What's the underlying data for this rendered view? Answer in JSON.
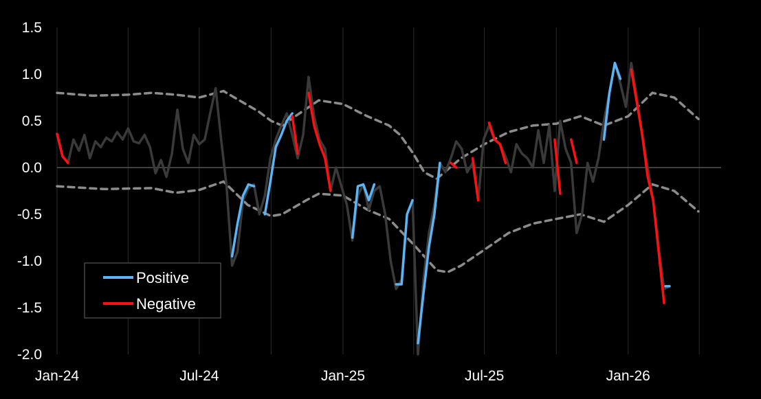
{
  "chart_data": {
    "type": "line",
    "title": "",
    "xlabel": "",
    "ylabel": "",
    "ylim": [
      -2.0,
      1.5
    ],
    "xlim": [
      "2024-01-01",
      "2026-04-30"
    ],
    "y_ticks": [
      "1.5",
      "1.0",
      "0.5",
      "0.0",
      "-0.5",
      "-1.0",
      "-1.5",
      "-2.0"
    ],
    "x_ticks": [
      {
        "label": "Jan-24",
        "date": "2024-01-01"
      },
      {
        "label": "Jul-24",
        "date": "2024-07-01"
      },
      {
        "label": "Jan-25",
        "date": "2025-01-01"
      },
      {
        "label": "Jul-25",
        "date": "2025-07-01"
      },
      {
        "label": "Jan-26",
        "date": "2026-01-01"
      }
    ],
    "grid": "vertical",
    "zero_line": true,
    "legend": {
      "placement": "bottom-left",
      "entries": [
        {
          "label": "Positive",
          "color": "#5BB4F5"
        },
        {
          "label": "Negative",
          "color": "#FF1010"
        }
      ]
    },
    "colors": {
      "base": "#3A3A3A",
      "positive": "#5BB4F5",
      "negative": "#FF1010",
      "band": "#8C8C8C",
      "grid": "#2A2A2A",
      "zero_line": "#555555"
    },
    "series": [
      {
        "role": "base",
        "points": [
          [
            "2024-01-01",
            0.36
          ],
          [
            "2024-01-08",
            0.12
          ],
          [
            "2024-01-15",
            0.05
          ],
          [
            "2024-01-22",
            0.3
          ],
          [
            "2024-01-29",
            0.18
          ],
          [
            "2024-02-05",
            0.35
          ],
          [
            "2024-02-12",
            0.1
          ],
          [
            "2024-02-19",
            0.28
          ],
          [
            "2024-02-26",
            0.22
          ],
          [
            "2024-03-04",
            0.32
          ],
          [
            "2024-03-11",
            0.28
          ],
          [
            "2024-03-18",
            0.38
          ],
          [
            "2024-03-25",
            0.3
          ],
          [
            "2024-04-01",
            0.42
          ],
          [
            "2024-04-08",
            0.28
          ],
          [
            "2024-04-15",
            0.26
          ],
          [
            "2024-04-22",
            0.35
          ],
          [
            "2024-04-29",
            0.22
          ],
          [
            "2024-05-06",
            -0.06
          ],
          [
            "2024-05-13",
            0.08
          ],
          [
            "2024-05-20",
            -0.1
          ],
          [
            "2024-05-27",
            0.15
          ],
          [
            "2024-06-03",
            0.62
          ],
          [
            "2024-06-10",
            0.2
          ],
          [
            "2024-06-17",
            0.05
          ],
          [
            "2024-06-24",
            0.35
          ],
          [
            "2024-07-01",
            0.25
          ],
          [
            "2024-07-08",
            0.3
          ],
          [
            "2024-07-15",
            0.58
          ],
          [
            "2024-07-22",
            0.85
          ],
          [
            "2024-07-29",
            0.3
          ],
          [
            "2024-08-05",
            -0.2
          ],
          [
            "2024-08-12",
            -1.05
          ],
          [
            "2024-08-19",
            -0.9
          ],
          [
            "2024-08-26",
            -0.35
          ],
          [
            "2024-09-02",
            -0.22
          ],
          [
            "2024-09-09",
            -0.18
          ],
          [
            "2024-09-16",
            -0.5
          ],
          [
            "2024-09-23",
            -0.3
          ],
          [
            "2024-09-30",
            0.1
          ],
          [
            "2024-10-07",
            0.3
          ],
          [
            "2024-10-14",
            0.45
          ],
          [
            "2024-10-21",
            0.58
          ],
          [
            "2024-10-28",
            0.35
          ],
          [
            "2024-11-04",
            0.1
          ],
          [
            "2024-11-11",
            0.35
          ],
          [
            "2024-11-18",
            0.97
          ],
          [
            "2024-11-25",
            0.55
          ],
          [
            "2024-12-02",
            0.3
          ],
          [
            "2024-12-09",
            0.2
          ],
          [
            "2024-12-16",
            -0.25
          ],
          [
            "2024-12-23",
            0.0
          ],
          [
            "2024-12-30",
            -0.2
          ],
          [
            "2025-01-06",
            -0.4
          ],
          [
            "2025-01-13",
            -0.78
          ],
          [
            "2025-01-20",
            -0.3
          ],
          [
            "2025-01-27",
            -0.18
          ],
          [
            "2025-02-03",
            -0.45
          ],
          [
            "2025-02-10",
            -0.25
          ],
          [
            "2025-02-17",
            -0.2
          ],
          [
            "2025-02-24",
            -0.5
          ],
          [
            "2025-03-03",
            -1.0
          ],
          [
            "2025-03-10",
            -1.3
          ],
          [
            "2025-03-17",
            -1.2
          ],
          [
            "2025-03-24",
            -0.5
          ],
          [
            "2025-03-31",
            -0.35
          ],
          [
            "2025-04-07",
            -2.0
          ],
          [
            "2025-04-14",
            -1.2
          ],
          [
            "2025-04-21",
            -0.7
          ],
          [
            "2025-04-28",
            -0.4
          ],
          [
            "2025-05-05",
            0.05
          ],
          [
            "2025-05-12",
            -0.05
          ],
          [
            "2025-05-19",
            0.1
          ],
          [
            "2025-05-26",
            0.28
          ],
          [
            "2025-06-02",
            0.2
          ],
          [
            "2025-06-09",
            -0.05
          ],
          [
            "2025-06-16",
            0.05
          ],
          [
            "2025-06-23",
            -0.35
          ],
          [
            "2025-06-30",
            0.3
          ],
          [
            "2025-07-07",
            0.45
          ],
          [
            "2025-07-14",
            0.3
          ],
          [
            "2025-07-21",
            0.25
          ],
          [
            "2025-07-28",
            0.12
          ],
          [
            "2025-08-04",
            -0.05
          ],
          [
            "2025-08-11",
            0.25
          ],
          [
            "2025-08-18",
            0.15
          ],
          [
            "2025-08-25",
            0.1
          ],
          [
            "2025-09-01",
            0.0
          ],
          [
            "2025-09-08",
            0.4
          ],
          [
            "2025-09-15",
            0.05
          ],
          [
            "2025-09-22",
            0.45
          ],
          [
            "2025-09-29",
            -0.25
          ],
          [
            "2025-10-06",
            0.5
          ],
          [
            "2025-10-13",
            0.2
          ],
          [
            "2025-10-20",
            0.05
          ],
          [
            "2025-10-27",
            -0.7
          ],
          [
            "2025-11-03",
            -0.5
          ],
          [
            "2025-11-10",
            0.05
          ],
          [
            "2025-11-17",
            -0.15
          ],
          [
            "2025-11-24",
            0.1
          ],
          [
            "2025-12-01",
            0.5
          ],
          [
            "2025-12-08",
            0.8
          ],
          [
            "2025-12-15",
            1.12
          ],
          [
            "2025-12-22",
            0.9
          ],
          [
            "2025-12-29",
            0.65
          ],
          [
            "2026-01-05",
            1.12
          ],
          [
            "2026-01-12",
            0.75
          ],
          [
            "2026-01-19",
            0.35
          ],
          [
            "2026-01-26",
            0.0
          ],
          [
            "2026-02-02",
            -0.35
          ],
          [
            "2026-02-09",
            -0.85
          ],
          [
            "2026-02-16",
            -1.3
          ],
          [
            "2026-02-23",
            -1.27
          ]
        ]
      },
      {
        "role": "positive",
        "segments": [
          [
            [
              "2024-08-12",
              -0.95
            ],
            [
              "2024-08-19",
              -0.6
            ],
            [
              "2024-08-26",
              -0.3
            ],
            [
              "2024-09-02",
              -0.18
            ],
            [
              "2024-09-09",
              -0.2
            ]
          ],
          [
            [
              "2024-09-23",
              -0.5
            ],
            [
              "2024-09-30",
              -0.15
            ],
            [
              "2024-10-07",
              0.22
            ],
            [
              "2024-10-14",
              0.35
            ],
            [
              "2024-10-21",
              0.5
            ],
            [
              "2024-10-28",
              0.58
            ]
          ],
          [
            [
              "2025-01-13",
              -0.75
            ],
            [
              "2025-01-20",
              -0.2
            ],
            [
              "2025-01-27",
              -0.18
            ],
            [
              "2025-02-03",
              -0.35
            ],
            [
              "2025-02-10",
              -0.18
            ]
          ],
          [
            [
              "2025-03-10",
              -1.25
            ],
            [
              "2025-03-17",
              -1.25
            ],
            [
              "2025-03-24",
              -0.5
            ],
            [
              "2025-03-31",
              -0.35
            ]
          ],
          [
            [
              "2025-04-07",
              -1.88
            ],
            [
              "2025-04-14",
              -1.35
            ],
            [
              "2025-04-21",
              -0.85
            ],
            [
              "2025-04-28",
              -0.5
            ],
            [
              "2025-05-05",
              0.05
            ]
          ],
          [
            [
              "2025-12-01",
              0.3
            ],
            [
              "2025-12-08",
              0.8
            ],
            [
              "2025-12-15",
              1.12
            ],
            [
              "2025-12-22",
              0.95
            ]
          ],
          [
            [
              "2026-02-23",
              -1.27
            ]
          ]
        ]
      },
      {
        "role": "negative",
        "segments": [
          [
            [
              "2024-01-01",
              0.36
            ],
            [
              "2024-01-08",
              0.12
            ],
            [
              "2024-01-15",
              0.05
            ]
          ],
          [
            [
              "2024-10-28",
              0.55
            ],
            [
              "2024-11-04",
              0.15
            ]
          ],
          [
            [
              "2024-11-18",
              0.8
            ],
            [
              "2024-11-25",
              0.45
            ],
            [
              "2024-12-02",
              0.25
            ],
            [
              "2024-12-09",
              0.1
            ],
            [
              "2024-12-16",
              -0.25
            ]
          ],
          [
            [
              "2025-05-19",
              0.05
            ],
            [
              "2025-05-26",
              0.0
            ]
          ],
          [
            [
              "2025-06-16",
              0.1
            ],
            [
              "2025-06-23",
              -0.35
            ]
          ],
          [
            [
              "2025-07-07",
              0.48
            ],
            [
              "2025-07-14",
              0.3
            ],
            [
              "2025-07-21",
              0.25
            ],
            [
              "2025-07-28",
              0.05
            ]
          ],
          [
            [
              "2025-09-29",
              0.3
            ],
            [
              "2025-10-06",
              -0.28
            ]
          ],
          [
            [
              "2025-10-20",
              0.3
            ],
            [
              "2025-10-27",
              0.05
            ]
          ],
          [
            [
              "2026-01-05",
              1.05
            ],
            [
              "2026-01-12",
              0.7
            ],
            [
              "2026-01-19",
              0.35
            ],
            [
              "2026-01-26",
              -0.1
            ],
            [
              "2026-02-02",
              -0.35
            ],
            [
              "2026-02-09",
              -0.9
            ],
            [
              "2026-02-16",
              -1.45
            ]
          ]
        ]
      },
      {
        "role": "band",
        "name": "upper",
        "points": [
          [
            "2024-01-01",
            0.8
          ],
          [
            "2024-02-15",
            0.77
          ],
          [
            "2024-04-01",
            0.78
          ],
          [
            "2024-05-01",
            0.8
          ],
          [
            "2024-06-01",
            0.78
          ],
          [
            "2024-07-01",
            0.75
          ],
          [
            "2024-08-01",
            0.82
          ],
          [
            "2024-08-15",
            0.75
          ],
          [
            "2024-09-15",
            0.6
          ],
          [
            "2024-10-01",
            0.5
          ],
          [
            "2024-10-15",
            0.45
          ],
          [
            "2024-11-01",
            0.55
          ],
          [
            "2024-12-01",
            0.72
          ],
          [
            "2025-01-01",
            0.68
          ],
          [
            "2025-02-01",
            0.55
          ],
          [
            "2025-03-01",
            0.45
          ],
          [
            "2025-03-15",
            0.35
          ],
          [
            "2025-04-01",
            0.15
          ],
          [
            "2025-04-15",
            -0.05
          ],
          [
            "2025-05-01",
            -0.12
          ],
          [
            "2025-06-01",
            0.1
          ],
          [
            "2025-07-01",
            0.25
          ],
          [
            "2025-08-01",
            0.38
          ],
          [
            "2025-09-01",
            0.45
          ],
          [
            "2025-10-01",
            0.47
          ],
          [
            "2025-11-01",
            0.55
          ],
          [
            "2025-12-01",
            0.45
          ],
          [
            "2026-01-01",
            0.55
          ],
          [
            "2026-02-01",
            0.8
          ],
          [
            "2026-03-01",
            0.75
          ],
          [
            "2026-04-01",
            0.52
          ]
        ]
      },
      {
        "role": "band",
        "name": "lower",
        "points": [
          [
            "2024-01-01",
            -0.2
          ],
          [
            "2024-03-01",
            -0.23
          ],
          [
            "2024-05-01",
            -0.22
          ],
          [
            "2024-06-01",
            -0.27
          ],
          [
            "2024-07-01",
            -0.24
          ],
          [
            "2024-08-01",
            -0.15
          ],
          [
            "2024-09-01",
            -0.4
          ],
          [
            "2024-10-01",
            -0.52
          ],
          [
            "2024-10-15",
            -0.5
          ],
          [
            "2024-11-15",
            -0.35
          ],
          [
            "2024-12-01",
            -0.28
          ],
          [
            "2025-01-01",
            -0.3
          ],
          [
            "2025-02-01",
            -0.45
          ],
          [
            "2025-03-01",
            -0.55
          ],
          [
            "2025-04-01",
            -0.82
          ],
          [
            "2025-05-01",
            -1.1
          ],
          [
            "2025-05-15",
            -1.12
          ],
          [
            "2025-06-01",
            -1.05
          ],
          [
            "2025-07-01",
            -0.88
          ],
          [
            "2025-08-01",
            -0.7
          ],
          [
            "2025-09-01",
            -0.6
          ],
          [
            "2025-10-01",
            -0.55
          ],
          [
            "2025-11-01",
            -0.5
          ],
          [
            "2025-12-01",
            -0.58
          ],
          [
            "2026-01-01",
            -0.4
          ],
          [
            "2026-02-01",
            -0.18
          ],
          [
            "2026-03-01",
            -0.25
          ],
          [
            "2026-04-01",
            -0.47
          ]
        ]
      }
    ]
  }
}
